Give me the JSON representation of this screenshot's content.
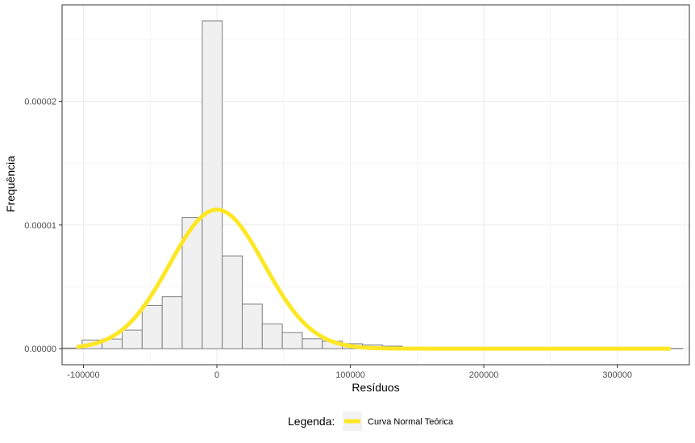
{
  "chart_data": {
    "type": "bar",
    "title": "",
    "xlabel": "Resíduos",
    "ylabel": "Frequência",
    "xlim": [
      -116000,
      354000
    ],
    "ylim": [
      -1.3e-06,
      2.78e-05
    ],
    "x_ticks": [
      -100000,
      0,
      100000,
      200000,
      300000
    ],
    "x_tick_labels": [
      "-100000",
      "0",
      "100000",
      "200000",
      "300000"
    ],
    "y_ticks": [
      0,
      1e-05,
      2e-05
    ],
    "y_tick_labels": [
      "0.00000",
      "0.00001",
      "0.00002"
    ],
    "grid": true,
    "bin_width": 15000,
    "bins": [
      {
        "x0": -116000,
        "x1": -101000,
        "density": 5e-08
      },
      {
        "x0": -101000,
        "x1": -86000,
        "density": 7e-07
      },
      {
        "x0": -86000,
        "x1": -71000,
        "density": 7.8e-07
      },
      {
        "x0": -71000,
        "x1": -56000,
        "density": 1.5e-06
      },
      {
        "x0": -56000,
        "x1": -41000,
        "density": 3.5e-06
      },
      {
        "x0": -41000,
        "x1": -26000,
        "density": 4.2e-06
      },
      {
        "x0": -26000,
        "x1": -11000,
        "density": 1.06e-05
      },
      {
        "x0": -11000,
        "x1": 4000,
        "density": 2.65e-05
      },
      {
        "x0": 4000,
        "x1": 19000,
        "density": 7.5e-06
      },
      {
        "x0": 19000,
        "x1": 34000,
        "density": 3.6e-06
      },
      {
        "x0": 34000,
        "x1": 49000,
        "density": 2e-06
      },
      {
        "x0": 49000,
        "x1": 64000,
        "density": 1.3e-06
      },
      {
        "x0": 64000,
        "x1": 79000,
        "density": 8e-07
      },
      {
        "x0": 79000,
        "x1": 94000,
        "density": 6e-07
      },
      {
        "x0": 94000,
        "x1": 109000,
        "density": 4e-07
      },
      {
        "x0": 109000,
        "x1": 124000,
        "density": 3e-07
      },
      {
        "x0": 124000,
        "x1": 139000,
        "density": 2e-07
      },
      {
        "x0": 139000,
        "x1": 154000,
        "density": 5e-08
      },
      {
        "x0": 154000,
        "x1": 169000,
        "density": 5e-08
      },
      {
        "x0": 169000,
        "x1": 184000,
        "density": 3e-08
      },
      {
        "x0": 184000,
        "x1": 199000,
        "density": 3e-08
      },
      {
        "x0": 199000,
        "x1": 214000,
        "density": 2e-08
      },
      {
        "x0": 214000,
        "x1": 229000,
        "density": 2e-08
      },
      {
        "x0": 229000,
        "x1": 244000,
        "density": 2e-08
      },
      {
        "x0": 244000,
        "x1": 259000,
        "density": 2e-08
      },
      {
        "x0": 259000,
        "x1": 274000,
        "density": 2e-08
      },
      {
        "x0": 274000,
        "x1": 289000,
        "density": 2e-08
      },
      {
        "x0": 289000,
        "x1": 304000,
        "density": 2e-08
      },
      {
        "x0": 304000,
        "x1": 319000,
        "density": 2e-08
      },
      {
        "x0": 319000,
        "x1": 334000,
        "density": 2e-08
      },
      {
        "x0": 334000,
        "x1": 349000,
        "density": 2e-08
      }
    ],
    "normal_curve": {
      "name": "Curva Normal Teórica",
      "mean": 0,
      "sd": 35500,
      "x_range": [
        -105000,
        340000
      ],
      "color": "#FDE725"
    },
    "colors": {
      "bar_fill": "#F0F0F0",
      "bar_stroke": "#7F7F7F",
      "grid": "#EBEBEB",
      "panel_border": "#333333"
    },
    "legend": {
      "position": "bottom",
      "title": "Legenda:",
      "entries": [
        "Curva Normal Teórica"
      ]
    }
  }
}
